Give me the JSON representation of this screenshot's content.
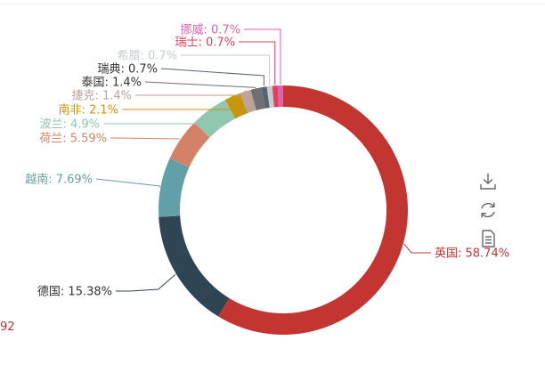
{
  "chart_data": {
    "type": "pie",
    "variant": "donut",
    "segments": [
      {
        "name": "英国",
        "percent": 58.74,
        "label": "英国: 58.74%",
        "color": "#c23531"
      },
      {
        "name": "德国",
        "percent": 15.38,
        "label": "德国: 15.38%",
        "color": "#2f4554"
      },
      {
        "name": "越南",
        "percent": 7.69,
        "label": "越南: 7.69%",
        "color": "#61a0a8"
      },
      {
        "name": "荷兰",
        "percent": 5.59,
        "label": "荷兰: 5.59%",
        "color": "#d48265"
      },
      {
        "name": "波兰",
        "percent": 4.9,
        "label": "波兰: 4.9%",
        "color": "#91c7ae"
      },
      {
        "name": "南非",
        "percent": 2.1,
        "label": "南非: 2.1%",
        "color": "#c8960c"
      },
      {
        "name": "捷克",
        "percent": 1.4,
        "label": "捷克: 1.4%",
        "color": "#bda29a"
      },
      {
        "name": "泰国",
        "percent": 1.4,
        "label": "泰国: 1.4%",
        "color": "#6e7074"
      },
      {
        "name": "瑞典",
        "percent": 0.7,
        "label": "瑞典: 0.7%",
        "color": "#546570"
      },
      {
        "name": "希腊",
        "percent": 0.7,
        "label": "希腊: 0.7%",
        "color": "#c4ccd3"
      },
      {
        "name": "瑞士",
        "percent": 0.7,
        "label": "瑞士: 0.7%",
        "color": "#e0405a"
      },
      {
        "name": "挪威",
        "percent": 0.7,
        "label": "挪威: 0.7%",
        "color": "#e062ae"
      }
    ]
  },
  "toolbox": {
    "icons": [
      "download-icon",
      "refresh-icon",
      "data-view-icon"
    ]
  },
  "clipped_text": "92"
}
